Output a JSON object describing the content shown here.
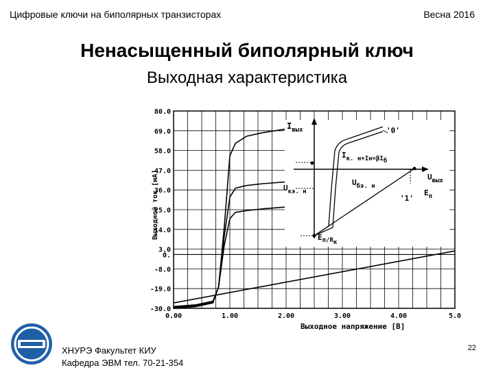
{
  "header": {
    "left": "Цифровые ключи на биполярных транзисторах",
    "right": "Весна 2016"
  },
  "title": "Ненасыщенный биполярный ключ",
  "subtitle": "Выходная характеристика",
  "chart_data": {
    "type": "line",
    "ylabel": "Выходной ток [мА]",
    "xlabel": "Выходное напряжение [В]",
    "x_ticks": [
      "0.00",
      "1.00",
      "2.00",
      "3.00",
      "4.00",
      "5.0"
    ],
    "y_ticks": [
      "80.0",
      "69.0",
      "58.0",
      "47.0",
      "36.0",
      "25.0",
      "14.0",
      "3.0",
      "0.",
      "-8.0",
      "-19.0",
      "-30.0"
    ],
    "xlim": [
      0,
      5
    ],
    "ylim": [
      -30,
      80
    ],
    "grid": true,
    "series": [
      {
        "x": [
          0,
          0.4,
          0.7,
          0.8,
          0.9,
          1.0,
          1.1,
          1.3,
          1.6,
          2.0
        ],
        "y": [
          -29,
          -28,
          -26,
          -18,
          15,
          55,
          62,
          66,
          68,
          70
        ]
      },
      {
        "x": [
          0,
          0.4,
          0.7,
          0.8,
          0.9,
          1.0,
          1.1,
          1.3,
          1.6,
          2.0
        ],
        "y": [
          -29.5,
          -28.5,
          -26.5,
          -18,
          10,
          32,
          37,
          38.5,
          39.5,
          40.5
        ]
      },
      {
        "x": [
          0,
          0.4,
          0.7,
          0.8,
          0.9,
          1.0,
          1.1,
          1.3,
          1.6,
          2.0
        ],
        "y": [
          -30,
          -29,
          -27,
          -18,
          5,
          20,
          23.5,
          24.5,
          25.5,
          26.5
        ]
      },
      {
        "x": [
          0,
          5.3
        ],
        "y": [
          -27,
          2
        ]
      }
    ]
  },
  "inset": {
    "i_out": "I",
    "i_out_sub": "вых",
    "u_out": "U",
    "u_out_sub": "вых",
    "ukesat": "U",
    "ukesat_sub": "кэ. н",
    "ubesat": "U",
    "ubesat_sub": "бэ. н",
    "ikn_eq": "I",
    "ikn_eq_rest": "к. н+I",
    "ikn_eq_rest2": "н=βI",
    "ikn_eq_rest3": "б",
    "ep": "E",
    "ep_sub": "п",
    "ep_rk": "E",
    "ep_rk_mid": "п/R",
    "ep_rk_sub": "к",
    "state0": "'0'",
    "state1": "'1'"
  },
  "footer": {
    "line1": "ХНУРЭ Факультет КИУ",
    "line2": "Кафедра ЭВМ   тел. 70-21-354",
    "page": "22"
  },
  "logo": {
    "icon": "university-logo-icon",
    "color": "#1e5fa8"
  }
}
